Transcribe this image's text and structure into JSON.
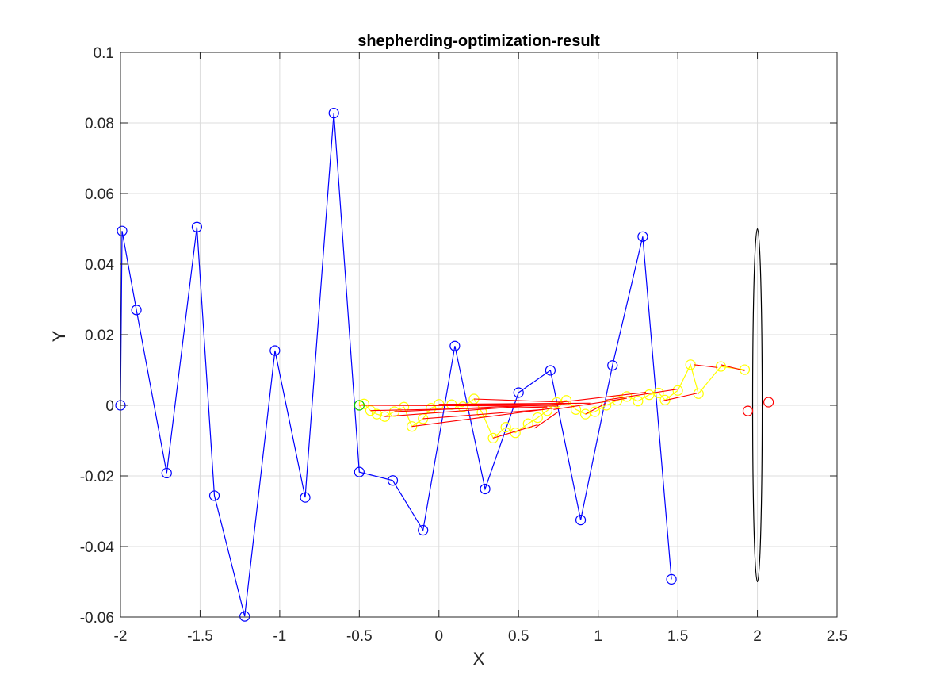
{
  "chart_data": {
    "type": "scatter",
    "title": "shepherding-optimization-result",
    "xlabel": "X",
    "ylabel": "Y",
    "xlim": [
      -2,
      2.5
    ],
    "ylim": [
      -0.06,
      0.1
    ],
    "xticks": [
      -2,
      -1.5,
      -1,
      -0.5,
      0,
      0.5,
      1,
      1.5,
      2,
      2.5
    ],
    "xtick_labels": [
      "-2",
      "-1.5",
      "-1",
      "-0.5",
      "0",
      "0.5",
      "1",
      "1.5",
      "2",
      "2.5"
    ],
    "yticks": [
      -0.06,
      -0.04,
      -0.02,
      0,
      0.02,
      0.04,
      0.06,
      0.08,
      0.1
    ],
    "ytick_labels": [
      "-0.06",
      "-0.04",
      "-0.02",
      "0",
      "0.02",
      "0.04",
      "0.06",
      "0.08",
      "0.1"
    ],
    "grid": true,
    "colors": {
      "shepherd": "#0000ff",
      "sheep": "#ffff00",
      "link": "#ff0000",
      "start": "#00cc00",
      "goal": "#ff0000",
      "target": "#000000"
    },
    "series": [
      {
        "marker": "o-",
        "color": "#0000ff",
        "points": [
          [
            -2.0,
            0.0
          ],
          [
            -1.99,
            0.0494
          ],
          [
            -1.9,
            0.027
          ],
          [
            -1.71,
            -0.0192
          ],
          [
            -1.52,
            0.0505
          ],
          [
            -1.41,
            -0.0256
          ],
          [
            -1.22,
            -0.0598
          ],
          [
            -1.03,
            0.0155
          ],
          [
            -0.84,
            -0.0261
          ],
          [
            -0.66,
            0.0828
          ],
          [
            -0.5,
            -0.0189
          ],
          [
            -0.29,
            -0.0213
          ],
          [
            -0.1,
            -0.0354
          ],
          [
            0.1,
            0.0168
          ],
          [
            0.29,
            -0.0237
          ],
          [
            0.5,
            0.0036
          ],
          [
            0.7,
            0.0099
          ],
          [
            0.89,
            -0.0325
          ],
          [
            1.09,
            0.0113
          ],
          [
            1.28,
            0.0478
          ],
          [
            1.46,
            -0.0493
          ]
        ]
      },
      {
        "marker": "o-",
        "color": "#ffff00",
        "points": [
          [
            -0.5,
            0.0
          ],
          [
            -0.47,
            0.0004
          ],
          [
            -0.43,
            -0.0015
          ],
          [
            -0.39,
            -0.0025
          ],
          [
            -0.34,
            -0.0032
          ],
          [
            -0.28,
            -0.0018
          ],
          [
            -0.22,
            -0.0005
          ],
          [
            -0.17,
            -0.006
          ],
          [
            -0.1,
            -0.0038
          ],
          [
            -0.05,
            -0.0008
          ],
          [
            0.0,
            0.0003
          ],
          [
            0.08,
            0.0002
          ],
          [
            0.15,
            -0.0004
          ],
          [
            0.22,
            0.0018
          ],
          [
            0.27,
            -0.002
          ],
          [
            0.34,
            -0.0093
          ],
          [
            0.42,
            -0.0062
          ],
          [
            0.48,
            -0.0078
          ],
          [
            0.56,
            -0.0052
          ],
          [
            0.62,
            -0.0035
          ],
          [
            0.68,
            -0.0015
          ],
          [
            0.74,
            0.0008
          ],
          [
            0.8,
            0.0014
          ],
          [
            0.86,
            -0.0012
          ],
          [
            0.92,
            -0.0025
          ],
          [
            0.98,
            -0.0018
          ],
          [
            1.05,
            0.0
          ],
          [
            1.12,
            0.0014
          ],
          [
            1.18,
            0.0025
          ],
          [
            1.25,
            0.0012
          ],
          [
            1.32,
            0.003
          ],
          [
            1.38,
            0.0035
          ],
          [
            1.42,
            0.0015
          ],
          [
            1.5,
            0.0042
          ],
          [
            1.58,
            0.0115
          ],
          [
            1.63,
            0.0033
          ],
          [
            1.77,
            0.011
          ],
          [
            1.92,
            0.0101
          ]
        ]
      }
    ],
    "links": [
      [
        [
          -0.5,
          0.0
        ],
        [
          0.75,
          -0.0002
        ]
      ],
      [
        [
          -0.43,
          -0.0015
        ],
        [
          0.68,
          -0.0005
        ]
      ],
      [
        [
          -0.34,
          -0.0032
        ],
        [
          0.6,
          0.0
        ]
      ],
      [
        [
          -0.28,
          -0.0018
        ],
        [
          0.82,
          0.0005
        ]
      ],
      [
        [
          -0.17,
          -0.006
        ],
        [
          0.72,
          -0.0008
        ]
      ],
      [
        [
          -0.1,
          -0.0038
        ],
        [
          0.66,
          -0.0012
        ]
      ],
      [
        [
          0.0,
          0.0003
        ],
        [
          0.95,
          0.0006
        ]
      ],
      [
        [
          0.08,
          0.0002
        ],
        [
          0.7,
          0.0002
        ]
      ],
      [
        [
          0.22,
          0.0018
        ],
        [
          0.78,
          0.0009
        ]
      ],
      [
        [
          0.34,
          -0.0093
        ],
        [
          0.62,
          -0.0055
        ]
      ],
      [
        [
          0.6,
          -0.0065
        ],
        [
          0.75,
          -0.0018
        ]
      ],
      [
        [
          0.72,
          -0.0012
        ],
        [
          1.18,
          0.002
        ]
      ],
      [
        [
          0.92,
          -0.0025
        ],
        [
          1.05,
          0.0006
        ]
      ],
      [
        [
          1.05,
          0.0015
        ],
        [
          1.5,
          0.0046
        ]
      ],
      [
        [
          0.75,
          0.0008
        ],
        [
          1.3,
          0.0037
        ]
      ],
      [
        [
          1.4,
          0.0012
        ],
        [
          1.62,
          0.0034
        ]
      ],
      [
        [
          1.6,
          0.0115
        ],
        [
          1.75,
          0.0107
        ]
      ],
      [
        [
          1.77,
          0.0115
        ],
        [
          1.92,
          0.0098
        ]
      ]
    ],
    "start_point": [
      -0.5,
      0.0
    ],
    "goal_points": [
      [
        1.94,
        -0.0016
      ],
      [
        2.07,
        0.0009
      ]
    ],
    "target_ellipse": {
      "center": [
        2.0,
        0.0
      ],
      "rx": 0.03,
      "ry": 0.05
    }
  }
}
